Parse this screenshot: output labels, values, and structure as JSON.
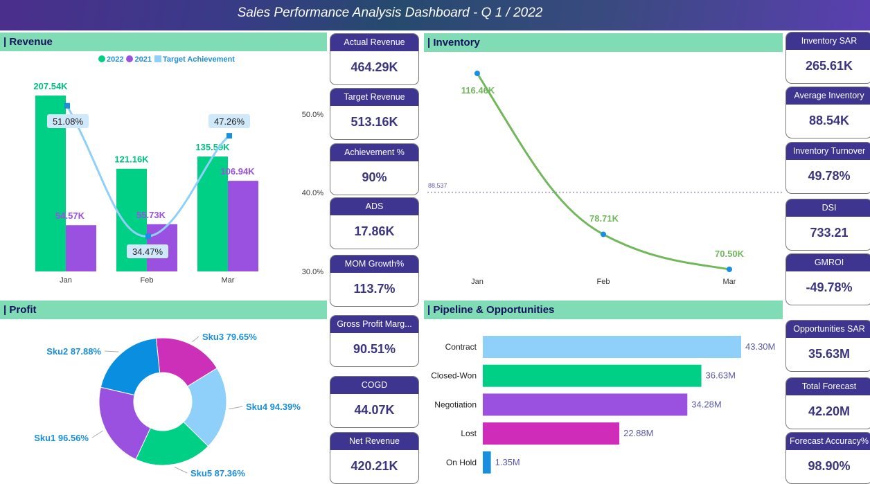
{
  "header": {
    "title": "Sales Performance Analysis Dashboard -  Q 1 / 2022"
  },
  "sections": {
    "revenue": "| Revenue",
    "inventory": "| Inventory",
    "profit": "| Profit",
    "pipeline": "| Pipeline & Opportunities"
  },
  "kpis_left": [
    {
      "label": "Actual Revenue",
      "value": "464.29K"
    },
    {
      "label": "Target Revenue",
      "value": "513.16K"
    },
    {
      "label": "Achievement %",
      "value": "90%"
    },
    {
      "label": "ADS",
      "value": "17.86K"
    },
    {
      "label": "MOM Growth%",
      "value": "113.7%"
    },
    {
      "label": "Gross Profit Marg...",
      "value": "90.51%"
    },
    {
      "label": "COGD",
      "value": "44.07K"
    },
    {
      "label": "Net Revenue",
      "value": "420.21K"
    }
  ],
  "kpis_right": [
    {
      "label": "Inventory SAR",
      "value": "265.61K"
    },
    {
      "label": "Average Inventory",
      "value": "88.54K"
    },
    {
      "label": "Inventory Turnover",
      "value": "49.78%"
    },
    {
      "label": "DSI",
      "value": "733.21"
    },
    {
      "label": "GMROI",
      "value": "-49.78%"
    },
    {
      "label": "Opportunities SAR",
      "value": "35.63M"
    },
    {
      "label": "Total Forecast",
      "value": "42.20M"
    },
    {
      "label": "Forecast Accuracy%",
      "value": "98.90%"
    }
  ],
  "chart_data": [
    {
      "type": "bar",
      "title": "",
      "categories": [
        "Jan",
        "Feb",
        "Mar"
      ],
      "series": [
        {
          "name": "2022",
          "values": [
            207.54,
            121.16,
            135.59
          ],
          "labels": [
            "207.54K",
            "121.16K",
            "135.59K"
          ],
          "color": "#00cf86"
        },
        {
          "name": "2021",
          "values": [
            54.57,
            55.73,
            106.94
          ],
          "labels": [
            "54.57K",
            "55.73K",
            "106.94K"
          ],
          "color": "#9b51e0"
        },
        {
          "name": "Target Achievement",
          "type": "line",
          "axis": "right",
          "values": [
            51.08,
            34.47,
            47.26
          ],
          "labels": [
            "51.08%",
            "34.47%",
            "47.26%"
          ],
          "color": "#8fd0fa"
        }
      ],
      "y2_ticks": [
        "50.0%",
        "40.0%",
        "30.0%"
      ],
      "y2lim": [
        30,
        50
      ],
      "legend": "top-center"
    },
    {
      "type": "line",
      "categories": [
        "Jan",
        "Feb",
        "Mar"
      ],
      "values": [
        116.46,
        78.71,
        70.5
      ],
      "labels": [
        "116.46K",
        "78.71K",
        "70.50K"
      ],
      "reference_line": {
        "value": 88.537,
        "label": "88,537"
      },
      "color": "#70b85a"
    },
    {
      "type": "pie",
      "donut": true,
      "categories": [
        "Sku3",
        "Sku4",
        "Sku5",
        "Sku1",
        "Sku2"
      ],
      "values": [
        79.65,
        94.39,
        87.36,
        96.56,
        87.88
      ],
      "labels": [
        "Sku3 79.65%",
        "Sku4 94.39%",
        "Sku5 87.36%",
        "Sku1 96.56%",
        "Sku2 87.88%"
      ],
      "colors": [
        "#cc2fb8",
        "#8fd0fa",
        "#00cf86",
        "#9b51e0",
        "#0a8fe0"
      ]
    },
    {
      "type": "bar",
      "orientation": "horizontal",
      "categories": [
        "Contract",
        "Closed-Won",
        "Negotiation",
        "Lost",
        "On Hold"
      ],
      "values": [
        43.3,
        36.63,
        34.28,
        22.88,
        1.35
      ],
      "labels": [
        "43.30M",
        "36.63M",
        "34.28M",
        "22.88M",
        "1.35M"
      ],
      "colors": [
        "#8fd0fa",
        "#00cf86",
        "#9b51e0",
        "#cf2db9",
        "#1a8fe0"
      ]
    }
  ]
}
